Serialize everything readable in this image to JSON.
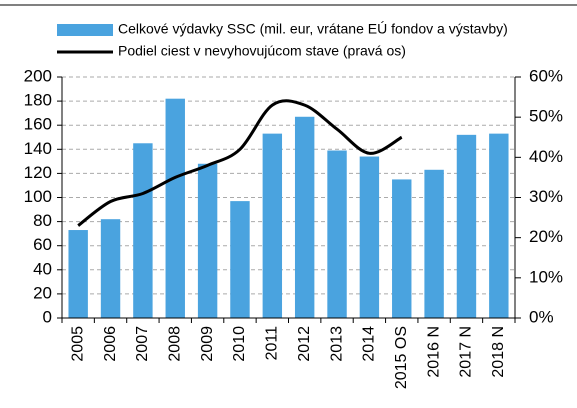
{
  "chart_data": {
    "type": "bar",
    "categories": [
      "2005",
      "2006",
      "2007",
      "2008",
      "2009",
      "2010",
      "2011",
      "2012",
      "2013",
      "2014",
      "2015 OS",
      "2016 N",
      "2017 N",
      "2018 N"
    ],
    "series": [
      {
        "name": "Celkové výdavky SSC (mil. eur, vrátane EÚ fondov a výstavby)",
        "color": "#4aa3df",
        "type": "bar",
        "values": [
          73,
          82,
          145,
          182,
          128,
          97,
          153,
          167,
          139,
          134,
          115,
          123,
          152,
          153
        ]
      },
      {
        "name": "Podiel ciest v nevyhovujúcom stave (pravá os)",
        "color": "#000000",
        "type": "line",
        "axis": "y2",
        "smooth": true,
        "values": [
          23,
          29,
          31,
          35,
          38,
          42,
          53,
          53,
          47,
          41,
          45,
          null,
          null,
          null
        ]
      }
    ],
    "ylim": [
      0,
      200
    ],
    "yticks": [
      0,
      20,
      40,
      60,
      80,
      100,
      120,
      140,
      160,
      180,
      200
    ],
    "y2lim": [
      0,
      60
    ],
    "y2ticks": [
      {
        "value": 0,
        "label": "0%"
      },
      {
        "value": 10,
        "label": "10%"
      },
      {
        "value": 20,
        "label": "20%"
      },
      {
        "value": 30,
        "label": "30%"
      },
      {
        "value": 40,
        "label": "40%"
      },
      {
        "value": 50,
        "label": "50%"
      },
      {
        "value": 60,
        "label": "60%"
      }
    ],
    "grid": true,
    "legend": "top"
  }
}
